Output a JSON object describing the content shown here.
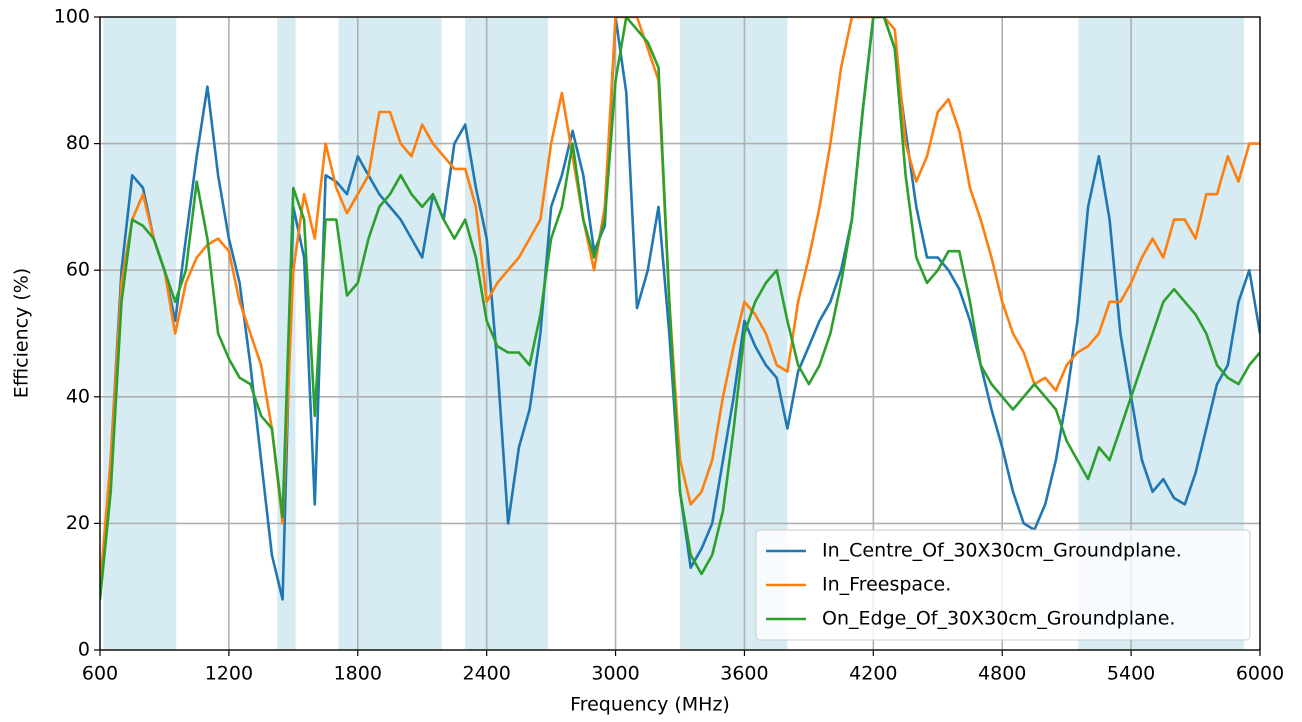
{
  "chart_data": {
    "type": "line",
    "xlabel": "Frequency (MHz)",
    "ylabel": "Efficiency (%)",
    "xlim": [
      600,
      6000
    ],
    "xticks": [
      600,
      1200,
      1800,
      2400,
      3000,
      3600,
      4200,
      4800,
      5400,
      6000
    ],
    "ylim": [
      0,
      100
    ],
    "yticks": [
      0,
      20,
      40,
      60,
      80,
      100
    ],
    "grid": true,
    "legend": "lower right",
    "band_color": "#add8e6",
    "bands": [
      [
        615,
        955
      ],
      [
        1425,
        1510
      ],
      [
        1710,
        2190
      ],
      [
        2300,
        2685
      ],
      [
        3300,
        3800
      ],
      [
        5155,
        5925
      ]
    ],
    "x": [
      600,
      650,
      700,
      750,
      800,
      850,
      900,
      950,
      1000,
      1050,
      1100,
      1150,
      1200,
      1250,
      1300,
      1350,
      1400,
      1450,
      1500,
      1550,
      1600,
      1650,
      1700,
      1750,
      1800,
      1850,
      1900,
      1950,
      2000,
      2050,
      2100,
      2150,
      2200,
      2250,
      2300,
      2350,
      2400,
      2450,
      2500,
      2550,
      2600,
      2650,
      2700,
      2750,
      2800,
      2850,
      2900,
      2950,
      3000,
      3050,
      3100,
      3150,
      3200,
      3250,
      3300,
      3350,
      3400,
      3450,
      3500,
      3550,
      3600,
      3650,
      3700,
      3750,
      3800,
      3850,
      3900,
      3950,
      4000,
      4050,
      4100,
      4150,
      4200,
      4250,
      4300,
      4350,
      4400,
      4450,
      4500,
      4550,
      4600,
      4650,
      4700,
      4750,
      4800,
      4850,
      4900,
      4950,
      5000,
      5050,
      5100,
      5150,
      5200,
      5250,
      5300,
      5350,
      5400,
      5450,
      5500,
      5550,
      5600,
      5650,
      5700,
      5750,
      5800,
      5850,
      5900,
      5950,
      6000
    ],
    "series": [
      {
        "name": "In_Centre_Of_30X30cm_Groundplane.",
        "color": "#1f77b4",
        "values": [
          8,
          30,
          60,
          75,
          73,
          65,
          60,
          52,
          65,
          78,
          89,
          75,
          65,
          58,
          45,
          30,
          15,
          8,
          70,
          62,
          23,
          75,
          74,
          72,
          78,
          75,
          72,
          70,
          68,
          65,
          62,
          72,
          68,
          80,
          83,
          73,
          65,
          45,
          20,
          32,
          38,
          50,
          70,
          75,
          82,
          75,
          63,
          67,
          100,
          88,
          54,
          60,
          70,
          50,
          25,
          13,
          16,
          20,
          30,
          40,
          52,
          48,
          45,
          43,
          35,
          44,
          48,
          52,
          55,
          60,
          68,
          85,
          100,
          100,
          95,
          82,
          70,
          62,
          62,
          60,
          57,
          52,
          45,
          38,
          32,
          25,
          20,
          19,
          23,
          30,
          40,
          52,
          70,
          78,
          68,
          50,
          40,
          30,
          25,
          27,
          24,
          23,
          28,
          35,
          42,
          45,
          55,
          60,
          50
        ]
      },
      {
        "name": "In_Freespace.",
        "color": "#ff7f0e",
        "values": [
          10,
          30,
          58,
          68,
          72,
          65,
          60,
          50,
          58,
          62,
          64,
          65,
          63,
          55,
          50,
          45,
          35,
          20,
          60,
          72,
          65,
          80,
          73,
          69,
          72,
          75,
          85,
          85,
          80,
          78,
          83,
          80,
          78,
          76,
          76,
          70,
          55,
          58,
          60,
          62,
          65,
          68,
          80,
          88,
          78,
          68,
          60,
          70,
          100,
          100,
          100,
          95,
          90,
          55,
          30,
          23,
          25,
          30,
          40,
          48,
          55,
          53,
          50,
          45,
          44,
          55,
          62,
          70,
          80,
          92,
          100,
          100,
          100,
          100,
          98,
          80,
          74,
          78,
          85,
          87,
          82,
          73,
          68,
          62,
          55,
          50,
          47,
          42,
          43,
          41,
          45,
          47,
          48,
          50,
          55,
          55,
          58,
          62,
          65,
          62,
          68,
          68,
          65,
          72,
          72,
          78,
          74,
          80,
          80
        ]
      },
      {
        "name": "On_Edge_Of_30X30cm_Groundplane.",
        "color": "#2ca02c",
        "values": [
          8,
          25,
          55,
          68,
          67,
          65,
          60,
          55,
          60,
          74,
          65,
          50,
          46,
          43,
          42,
          37,
          35,
          21,
          73,
          68,
          37,
          68,
          68,
          56,
          58,
          65,
          70,
          72,
          75,
          72,
          70,
          72,
          68,
          65,
          68,
          62,
          52,
          48,
          47,
          47,
          45,
          53,
          65,
          70,
          80,
          68,
          62,
          68,
          90,
          100,
          98,
          96,
          92,
          55,
          25,
          15,
          12,
          15,
          22,
          35,
          50,
          55,
          58,
          60,
          52,
          45,
          42,
          45,
          50,
          58,
          68,
          85,
          100,
          100,
          95,
          75,
          62,
          58,
          60,
          63,
          63,
          55,
          45,
          42,
          40,
          38,
          40,
          42,
          40,
          38,
          33,
          30,
          27,
          32,
          30,
          35,
          40,
          45,
          50,
          55,
          57,
          55,
          53,
          50,
          45,
          43,
          42,
          45,
          47
        ]
      }
    ]
  }
}
